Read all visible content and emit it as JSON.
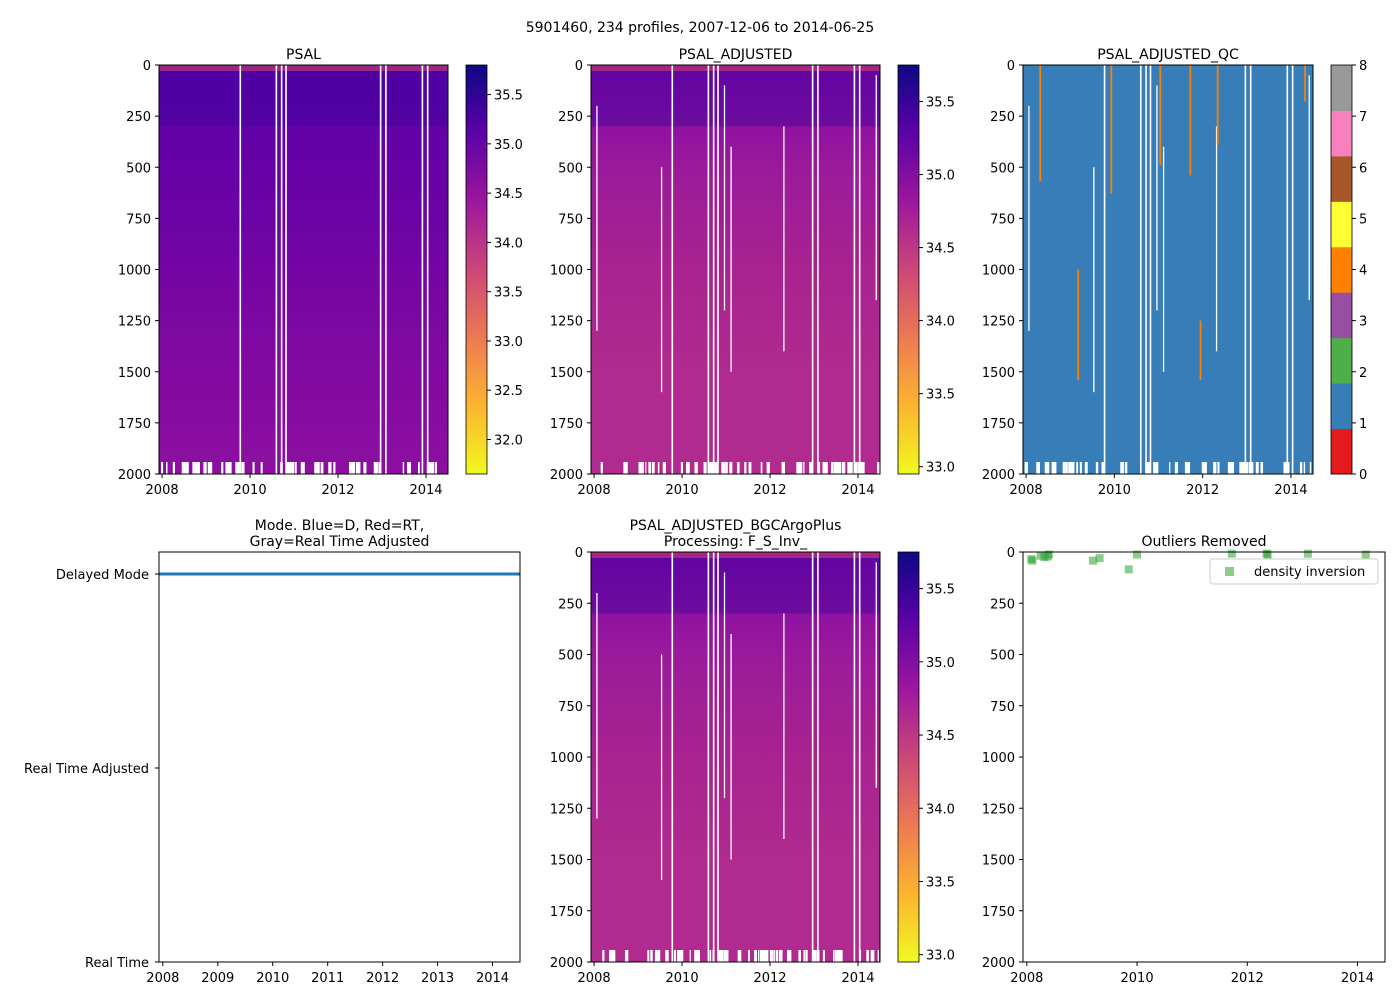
{
  "chart_data": {
    "suptitle": "5901460, 234 profiles, 2007-12-06 to 2014-06-25",
    "x_range": [
      2007.93,
      2014.5
    ],
    "y_range": [
      0,
      2000
    ],
    "y_ticks": [
      "0",
      "250",
      "500",
      "750",
      "1000",
      "1250",
      "1500",
      "1750",
      "2000"
    ],
    "year_ticks_2": [
      "2008",
      "2010",
      "2012",
      "2014"
    ],
    "year_ticks_1": [
      "2008",
      "2009",
      "2010",
      "2011",
      "2012",
      "2013",
      "2014"
    ],
    "gap_years": [
      2009.76,
      2010.58,
      2010.7,
      2010.8,
      2012.95,
      2013.07,
      2013.9,
      2014.02
    ],
    "panels": [
      {
        "type": "heatmap",
        "title": "PSAL",
        "cmap": "plasma_r",
        "clim": [
          31.65,
          35.8
        ],
        "cbar_ticks": [
          "32.0",
          "32.5",
          "33.0",
          "33.5",
          "34.0",
          "34.5",
          "35.0",
          "35.5"
        ]
      },
      {
        "type": "heatmap",
        "title": "PSAL_ADJUSTED",
        "cmap": "plasma_r",
        "clim": [
          32.95,
          35.75
        ],
        "cbar_ticks": [
          "33.0",
          "33.5",
          "34.0",
          "34.5",
          "35.0",
          "35.5"
        ]
      },
      {
        "type": "heatmap",
        "title": "PSAL_ADJUSTED_QC",
        "cmap": "qc",
        "clim": [
          0,
          8
        ],
        "cbar_ticks": [
          "0",
          "1",
          "2",
          "3",
          "4",
          "5",
          "6",
          "7",
          "8"
        ],
        "qc_colors": [
          "#e41a1c",
          "#377eb8",
          "#4daf4a",
          "#984ea3",
          "#ff7f00",
          "#ffff33",
          "#a65628",
          "#f781bf",
          "#999999"
        ],
        "qc4_segments": [
          [
            2008.3,
            0,
            570
          ],
          [
            2009.16,
            1000,
            1540
          ],
          [
            2009.91,
            0,
            630
          ],
          [
            2011.02,
            0,
            490
          ],
          [
            2011.7,
            0,
            540
          ],
          [
            2011.93,
            1250,
            1540
          ],
          [
            2012.32,
            0,
            390
          ],
          [
            2014.3,
            0,
            180
          ]
        ]
      },
      {
        "type": "line",
        "title": "Mode. Blue=D, Red=RT,\nGray=Real Time Adjusted",
        "y_labels": [
          "Delayed Mode",
          "Real Time Adjusted",
          "Real Time"
        ],
        "series_color": "#1f77b4",
        "value": "Delayed Mode"
      },
      {
        "type": "heatmap",
        "title": "PSAL_ADJUSTED_BGCArgoPlus\nProcessing: F_S_Inv_",
        "cmap": "plasma_r",
        "clim": [
          32.95,
          35.75
        ],
        "cbar_ticks": [
          "33.0",
          "33.5",
          "34.0",
          "34.5",
          "35.0",
          "35.5"
        ]
      },
      {
        "type": "scatter",
        "title": "Outliers Removed",
        "legend": "density inversion",
        "legend_loc": "upper right",
        "color": "#2ca02c",
        "points": [
          [
            2008.08,
            35
          ],
          [
            2008.1,
            42
          ],
          [
            2008.25,
            18
          ],
          [
            2008.32,
            25
          ],
          [
            2008.4,
            12
          ],
          [
            2008.38,
            22
          ],
          [
            2009.2,
            42
          ],
          [
            2009.32,
            30
          ],
          [
            2009.85,
            85
          ],
          [
            2010.0,
            12
          ],
          [
            2011.72,
            8
          ],
          [
            2012.35,
            8
          ],
          [
            2012.37,
            12
          ],
          [
            2013.1,
            8
          ],
          [
            2014.15,
            12
          ]
        ]
      }
    ]
  }
}
